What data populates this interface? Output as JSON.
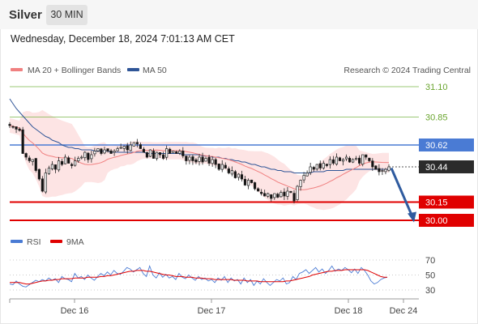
{
  "header": {
    "symbol": "Silver",
    "timeframe": "30 MIN",
    "datetime": "Wednesday, December 18, 2024 7:01:13 AM CET"
  },
  "legend": {
    "ma20_label": "MA 20 + Bollinger Bands",
    "ma50_label": "MA 50",
    "ma20_color": "#f08080",
    "ma50_color": "#2f5597",
    "credit": "Research © 2024 Trading Central"
  },
  "rsi_legend": {
    "rsi_label": "RSI",
    "ma_label": "9MA",
    "rsi_color": "#4a7bd4",
    "ma_color": "#e00000"
  },
  "colors": {
    "up_candle": "#ffffff",
    "down_candle": "#111111",
    "band_fill": "#fde4e4",
    "green_level": "#7ab648",
    "blue_level": "#4a7bd4",
    "red_level": "#e00000",
    "arrow": "#2f5b9f"
  },
  "chart_data": [
    {
      "type": "candlestick",
      "title": "Silver 30 MIN",
      "x_ticks": [
        "Dec 16",
        "Dec 17",
        "Dec 18",
        "Dec 24"
      ],
      "ylim": [
        29.93,
        31.16
      ],
      "levels": [
        {
          "label": "31.10",
          "value": 31.1,
          "style": "resistance",
          "color": "#7ab648"
        },
        {
          "label": "30.85",
          "value": 30.85,
          "style": "resistance",
          "color": "#7ab648"
        },
        {
          "label": "30.62",
          "value": 30.62,
          "style": "pivot",
          "color": "#4a7bd4"
        },
        {
          "label": "30.44",
          "value": 30.44,
          "style": "last price",
          "color": "#222222"
        },
        {
          "label": "30.15",
          "value": 30.15,
          "style": "support",
          "color": "#e00000"
        },
        {
          "label": "30.00",
          "value": 30.0,
          "style": "support",
          "color": "#e00000"
        }
      ],
      "last_price": 30.44,
      "forecast_arrow": {
        "from": 30.43,
        "to": 29.99
      },
      "closes": [
        30.78,
        30.77,
        30.75,
        30.74,
        30.55,
        30.52,
        30.49,
        30.5,
        30.41,
        30.34,
        30.24,
        30.39,
        30.43,
        30.46,
        30.42,
        30.49,
        30.46,
        30.52,
        30.47,
        30.45,
        30.49,
        30.51,
        30.52,
        30.56,
        30.5,
        30.54,
        30.57,
        30.59,
        30.55,
        30.58,
        30.57,
        30.55,
        30.57,
        30.59,
        30.6,
        30.61,
        30.58,
        30.62,
        30.64,
        30.63,
        30.59,
        30.56,
        30.52,
        30.58,
        30.51,
        30.56,
        30.54,
        30.51,
        30.59,
        30.55,
        30.57,
        30.55,
        30.57,
        30.53,
        30.49,
        30.52,
        30.49,
        30.48,
        30.52,
        30.48,
        30.51,
        30.47,
        30.5,
        30.46,
        30.42,
        30.46,
        30.43,
        30.39,
        30.41,
        30.35,
        30.38,
        30.34,
        30.29,
        30.33,
        30.31,
        30.26,
        30.24,
        30.22,
        30.2,
        30.22,
        30.18,
        30.22,
        30.19,
        30.23,
        30.2,
        30.24,
        30.23,
        30.16,
        30.28,
        30.33,
        30.37,
        30.39,
        30.44,
        30.42,
        30.46,
        30.43,
        30.47,
        30.45,
        30.5,
        30.47,
        30.52,
        30.49,
        30.5,
        30.52,
        30.48,
        30.5,
        30.51,
        30.47,
        30.54,
        30.52,
        30.49,
        30.44,
        30.42,
        30.4,
        30.41,
        30.42,
        30.44
      ],
      "ma50": [
        31.0,
        30.96,
        30.92,
        30.89,
        30.86,
        30.83,
        30.8,
        30.77,
        30.75,
        30.73,
        30.71,
        30.69,
        30.68,
        30.66,
        30.65,
        30.64,
        30.62,
        30.61,
        30.6,
        30.6,
        30.59,
        30.59,
        30.58,
        30.58,
        30.58,
        30.58,
        30.57,
        30.57,
        30.57,
        30.57,
        30.57,
        30.56,
        30.56,
        30.56,
        30.56,
        30.56,
        30.56,
        30.56,
        30.56,
        30.56,
        30.56,
        30.56,
        30.55,
        30.55,
        30.55,
        30.55,
        30.55,
        30.55,
        30.55,
        30.55,
        30.55,
        30.55,
        30.55,
        30.54,
        30.54,
        30.54,
        30.54,
        30.54,
        30.54,
        30.53,
        30.53,
        30.53,
        30.52,
        30.52,
        30.52,
        30.51,
        30.51,
        30.5,
        30.5,
        30.49,
        30.49,
        30.48,
        30.48,
        30.47,
        30.46,
        30.46,
        30.45,
        30.44,
        30.44,
        30.43,
        30.42,
        30.42,
        30.41,
        30.41,
        30.4,
        30.4,
        30.4,
        30.39,
        30.39,
        30.39,
        30.39,
        30.39,
        30.39,
        30.4,
        30.4,
        30.4,
        30.4,
        30.41,
        30.41,
        30.41,
        30.41,
        30.41,
        30.41,
        30.42,
        30.42,
        30.42,
        30.42,
        30.42,
        30.42,
        30.42,
        30.42,
        30.42,
        30.42,
        30.42,
        30.42,
        30.42,
        30.42
      ],
      "rsi": {
        "ylim": [
          20,
          80
        ],
        "ticks": [
          70,
          50,
          30
        ],
        "rsi_values": [
          38,
          37,
          42,
          38,
          35,
          34,
          37,
          40,
          43,
          41,
          44,
          42,
          46,
          43,
          45,
          40,
          48,
          45,
          44,
          41,
          52,
          46,
          48,
          44,
          50,
          46,
          43,
          48,
          52,
          49,
          54,
          50,
          56,
          52,
          51,
          55,
          60,
          58,
          54,
          57,
          60,
          52,
          48,
          62,
          50,
          46,
          53,
          47,
          51,
          46,
          48,
          44,
          52,
          47,
          45,
          50,
          46,
          43,
          48,
          44,
          46,
          42,
          44,
          40,
          46,
          43,
          48,
          40,
          46,
          42,
          44,
          38,
          46,
          40,
          44,
          36,
          42,
          38,
          45,
          40,
          36,
          40,
          44,
          42,
          46,
          38,
          40,
          48,
          44,
          52,
          54,
          57,
          52,
          56,
          60,
          54,
          58,
          52,
          56,
          62,
          55,
          58,
          56,
          60,
          57,
          53,
          58,
          52,
          60,
          56,
          50,
          42,
          38,
          40,
          44,
          46,
          47
        ],
        "ma9_values": [
          40,
          40,
          40,
          40,
          39,
          38,
          38,
          39,
          40,
          41,
          42,
          42,
          43,
          43,
          44,
          44,
          45,
          45,
          45,
          45,
          46,
          46,
          46,
          46,
          47,
          47,
          47,
          47,
          48,
          48,
          49,
          49,
          50,
          51,
          52,
          53,
          54,
          55,
          55,
          56,
          56,
          56,
          55,
          55,
          54,
          53,
          52,
          51,
          50,
          50,
          49,
          48,
          48,
          48,
          47,
          47,
          47,
          46,
          46,
          46,
          45,
          45,
          45,
          44,
          44,
          44,
          44,
          44,
          44,
          43,
          43,
          43,
          43,
          42,
          42,
          42,
          42,
          41,
          41,
          41,
          41,
          41,
          41,
          41,
          41,
          42,
          42,
          43,
          44,
          45,
          46,
          47,
          48,
          50,
          51,
          52,
          53,
          54,
          55,
          55,
          56,
          56,
          56,
          57,
          57,
          57,
          57,
          57,
          57,
          57,
          56,
          54,
          52,
          50,
          48,
          47,
          47
        ]
      }
    }
  ]
}
